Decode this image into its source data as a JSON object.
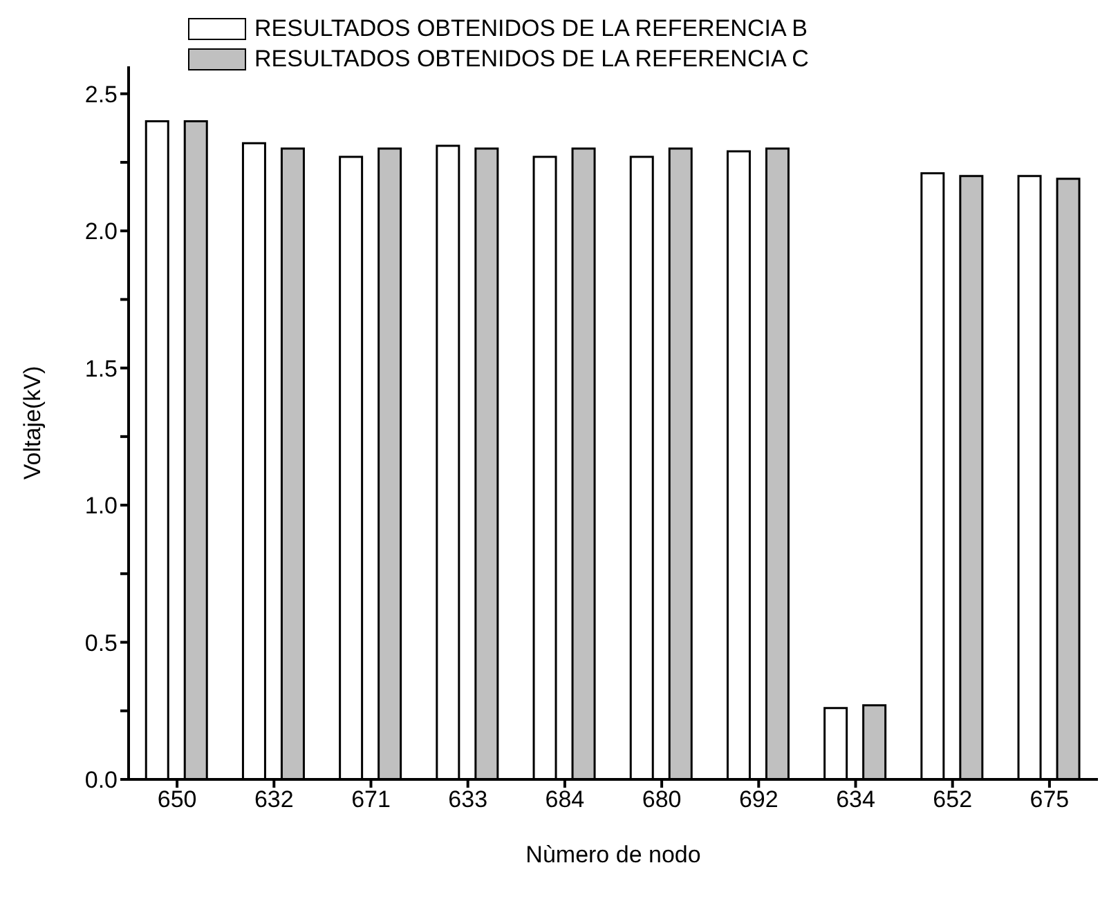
{
  "chart_data": {
    "type": "bar",
    "xlabel": "Nùmero de nodo",
    "ylabel": "Voltaje(kV)",
    "categories": [
      "650",
      "632",
      "671",
      "633",
      "684",
      "680",
      "692",
      "634",
      "652",
      "675"
    ],
    "series": [
      {
        "name": "RESULTADOS OBTENIDOS DE LA REFERENCIA B",
        "color": "#ffffff",
        "values": [
          2.4,
          2.32,
          2.27,
          2.31,
          2.27,
          2.27,
          2.29,
          0.26,
          2.21,
          2.2
        ]
      },
      {
        "name": "RESULTADOS OBTENIDOS DE LA REFERENCIA C",
        "color": "#c0c0c0",
        "values": [
          2.4,
          2.3,
          2.3,
          2.3,
          2.3,
          2.3,
          2.3,
          0.27,
          2.2,
          2.19
        ]
      }
    ],
    "ylim": [
      0,
      2.6
    ],
    "yticks": [
      {
        "value": 0,
        "label": "0.0"
      },
      {
        "value": 0.25,
        "label": null
      },
      0.5,
      {
        "value": 0.75,
        "label": null
      },
      {
        "value": 1,
        "label": "1.0"
      },
      {
        "value": 1.25,
        "label": null
      },
      1.5,
      {
        "value": 1.75,
        "label": null
      },
      {
        "value": 2,
        "label": "2.0"
      },
      {
        "value": 2.25,
        "label": null
      },
      2.5
    ],
    "grid": false,
    "legend": "top"
  }
}
